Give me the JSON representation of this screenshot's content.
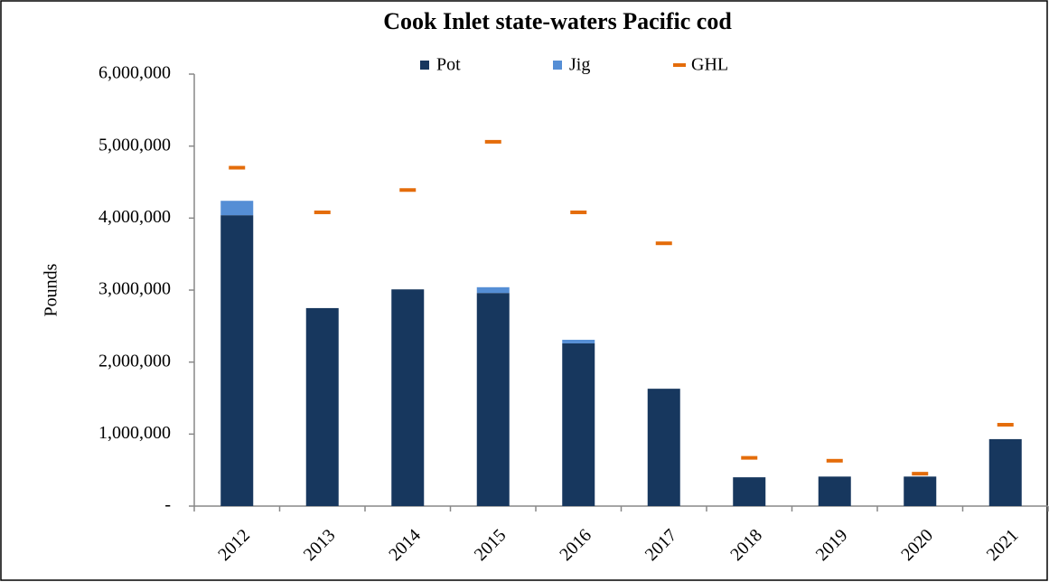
{
  "chart_data": {
    "type": "bar",
    "stacked": true,
    "title": "Cook Inlet state-waters Pacific cod",
    "y_label": "Pounds",
    "categories": [
      "2012",
      "2013",
      "2014",
      "2015",
      "2016",
      "2017",
      "2018",
      "2019",
      "2020",
      "2021"
    ],
    "series": [
      {
        "name": "Pot",
        "color": "#17375e",
        "type": "bar",
        "values": [
          4040000,
          2750000,
          3010000,
          2960000,
          2260000,
          1630000,
          400000,
          410000,
          410000,
          930000
        ]
      },
      {
        "name": "Jig",
        "color": "#558ed5",
        "type": "bar",
        "values": [
          200000,
          0,
          0,
          80000,
          50000,
          0,
          0,
          0,
          0,
          0
        ]
      },
      {
        "name": "GHL",
        "color": "#e46c0a",
        "type": "marker",
        "values": [
          4700000,
          4080000,
          4390000,
          5060000,
          4080000,
          3650000,
          670000,
          630000,
          450000,
          1130000
        ]
      }
    ],
    "ylim": [
      0,
      6000000
    ],
    "yticks": [
      {
        "value": 0,
        "label": "-"
      },
      {
        "value": 1000000,
        "label": "1,000,000"
      },
      {
        "value": 2000000,
        "label": "2,000,000"
      },
      {
        "value": 3000000,
        "label": "3,000,000"
      },
      {
        "value": 4000000,
        "label": "4,000,000"
      },
      {
        "value": 5000000,
        "label": "5,000,000"
      },
      {
        "value": 6000000,
        "label": "6,000,000"
      }
    ],
    "legend": "top"
  }
}
